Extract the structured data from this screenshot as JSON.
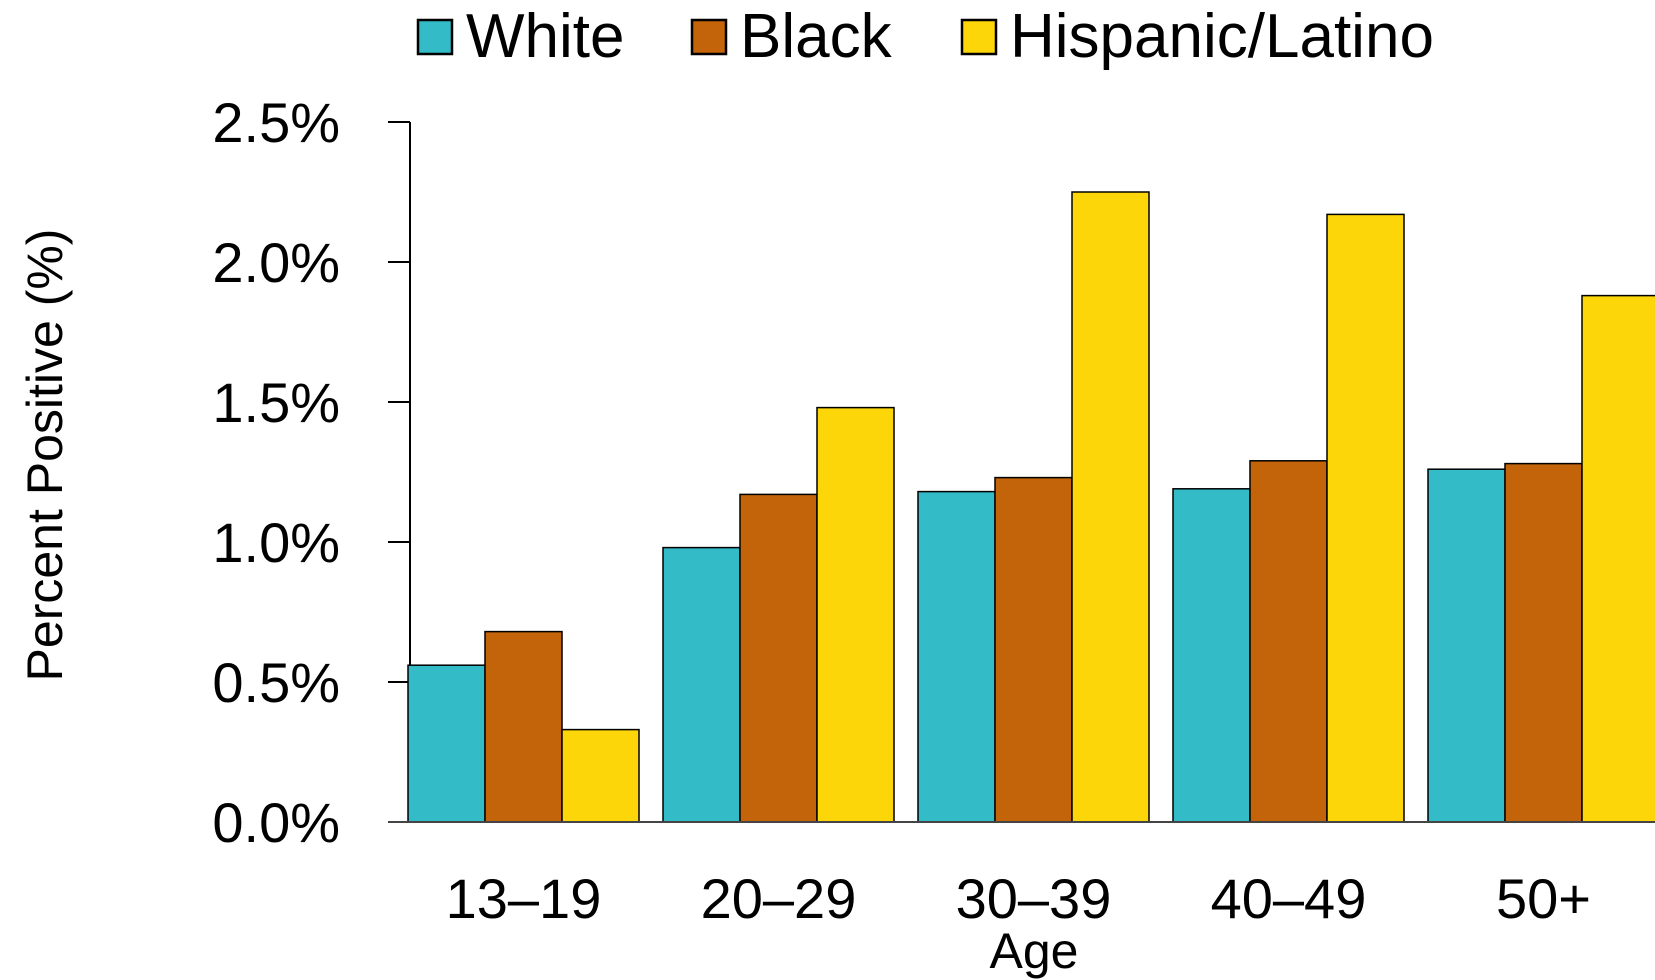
{
  "chart_data": {
    "type": "bar",
    "categories": [
      "13–19",
      "20–29",
      "30–39",
      "40–49",
      "50+"
    ],
    "series": [
      {
        "name": "White",
        "color": "#33BBC7",
        "values": [
          0.56,
          0.98,
          1.18,
          1.19,
          1.26
        ]
      },
      {
        "name": "Black",
        "color": "#C4640A",
        "values": [
          0.68,
          1.17,
          1.23,
          1.29,
          1.28
        ]
      },
      {
        "name": "Hispanic/Latino",
        "color": "#FDD60A",
        "values": [
          0.33,
          1.48,
          2.25,
          2.17,
          1.88
        ]
      }
    ],
    "xlabel": "Age",
    "ylabel": "Percent Positive (%)",
    "ylim": [
      0,
      2.5
    ],
    "yticks": [
      {
        "value": 0.0,
        "label": "0.0%"
      },
      {
        "value": 0.5,
        "label": "0.5%"
      },
      {
        "value": 1.0,
        "label": "1.0%"
      },
      {
        "value": 1.5,
        "label": "1.5%"
      },
      {
        "value": 2.0,
        "label": "2.0%"
      },
      {
        "value": 2.5,
        "label": "2.5%"
      }
    ],
    "grid": false,
    "legend_position": "top",
    "colors": {
      "bar_outline": "#000000",
      "axis": "#000000"
    }
  }
}
